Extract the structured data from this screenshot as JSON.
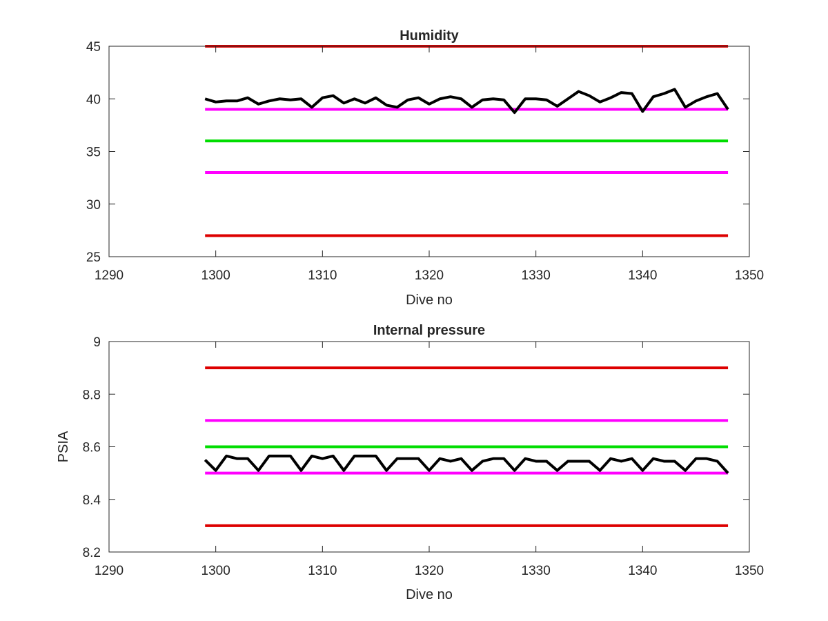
{
  "chart_data": [
    {
      "type": "line",
      "title": "Humidity",
      "xlabel": "Dive no",
      "ylabel": "",
      "xlim": [
        1290,
        1350
      ],
      "ylim": [
        25,
        45
      ],
      "xticks": [
        "1290",
        "1300",
        "1310",
        "1320",
        "1330",
        "1340",
        "1350"
      ],
      "yticks": [
        "25",
        "30",
        "35",
        "40",
        "45"
      ],
      "grid": false,
      "series": [
        {
          "color": "#dd0000",
          "x": [
            1299,
            1348
          ],
          "values": [
            45,
            45
          ]
        },
        {
          "color": "#ff00ff",
          "x": [
            1299,
            1348
          ],
          "values": [
            39,
            39
          ]
        },
        {
          "color": "#00dd00",
          "x": [
            1299,
            1348
          ],
          "values": [
            36,
            36
          ]
        },
        {
          "color": "#ff00ff",
          "x": [
            1299,
            1348
          ],
          "values": [
            33,
            33
          ]
        },
        {
          "color": "#dd0000",
          "x": [
            1299,
            1348
          ],
          "values": [
            27,
            27
          ]
        },
        {
          "color": "#000000",
          "x": [
            1299,
            1300,
            1301,
            1302,
            1303,
            1304,
            1305,
            1306,
            1307,
            1308,
            1309,
            1310,
            1311,
            1312,
            1313,
            1314,
            1315,
            1316,
            1317,
            1318,
            1319,
            1320,
            1321,
            1322,
            1323,
            1324,
            1325,
            1326,
            1327,
            1328,
            1329,
            1330,
            1331,
            1332,
            1333,
            1334,
            1335,
            1336,
            1337,
            1338,
            1339,
            1340,
            1341,
            1342,
            1343,
            1344,
            1345,
            1346,
            1347,
            1348
          ],
          "values": [
            40.0,
            39.7,
            39.8,
            39.8,
            40.1,
            39.5,
            39.8,
            40.0,
            39.9,
            40.0,
            39.2,
            40.1,
            40.3,
            39.6,
            40.0,
            39.6,
            40.1,
            39.4,
            39.2,
            39.9,
            40.1,
            39.5,
            40.0,
            40.2,
            40.0,
            39.2,
            39.9,
            40.0,
            39.9,
            38.7,
            40.0,
            40.0,
            39.9,
            39.3,
            40.0,
            40.7,
            40.3,
            39.7,
            40.1,
            40.6,
            40.5,
            38.8,
            40.2,
            40.5,
            40.9,
            39.2,
            39.8,
            40.2,
            40.5,
            39.0
          ]
        }
      ]
    },
    {
      "type": "line",
      "title": "Internal pressure",
      "xlabel": "Dive no",
      "ylabel": "PSIA",
      "xlim": [
        1290,
        1350
      ],
      "ylim": [
        8.2,
        9.0
      ],
      "xticks": [
        "1290",
        "1300",
        "1310",
        "1320",
        "1330",
        "1340",
        "1350"
      ],
      "yticks": [
        "8.2",
        "8.4",
        "8.6",
        "8.8",
        "9"
      ],
      "grid": false,
      "series": [
        {
          "color": "#dd0000",
          "x": [
            1299,
            1348
          ],
          "values": [
            8.9,
            8.9
          ]
        },
        {
          "color": "#ff00ff",
          "x": [
            1299,
            1348
          ],
          "values": [
            8.7,
            8.7
          ]
        },
        {
          "color": "#00dd00",
          "x": [
            1299,
            1348
          ],
          "values": [
            8.6,
            8.6
          ]
        },
        {
          "color": "#ff00ff",
          "x": [
            1299,
            1348
          ],
          "values": [
            8.5,
            8.5
          ]
        },
        {
          "color": "#dd0000",
          "x": [
            1299,
            1348
          ],
          "values": [
            8.3,
            8.3
          ]
        },
        {
          "color": "#000000",
          "x": [
            1299,
            1300,
            1301,
            1302,
            1303,
            1304,
            1305,
            1306,
            1307,
            1308,
            1309,
            1310,
            1311,
            1312,
            1313,
            1314,
            1315,
            1316,
            1317,
            1318,
            1319,
            1320,
            1321,
            1322,
            1323,
            1324,
            1325,
            1326,
            1327,
            1328,
            1329,
            1330,
            1331,
            1332,
            1333,
            1334,
            1335,
            1336,
            1337,
            1338,
            1339,
            1340,
            1341,
            1342,
            1343,
            1344,
            1345,
            1346,
            1347,
            1348
          ],
          "values": [
            8.55,
            8.51,
            8.565,
            8.555,
            8.555,
            8.51,
            8.565,
            8.565,
            8.565,
            8.51,
            8.565,
            8.555,
            8.565,
            8.51,
            8.565,
            8.565,
            8.565,
            8.51,
            8.555,
            8.555,
            8.555,
            8.51,
            8.555,
            8.545,
            8.555,
            8.51,
            8.545,
            8.555,
            8.555,
            8.51,
            8.555,
            8.545,
            8.545,
            8.51,
            8.545,
            8.545,
            8.545,
            8.51,
            8.555,
            8.545,
            8.555,
            8.51,
            8.555,
            8.545,
            8.545,
            8.51,
            8.555,
            8.555,
            8.545,
            8.5
          ]
        }
      ]
    }
  ]
}
